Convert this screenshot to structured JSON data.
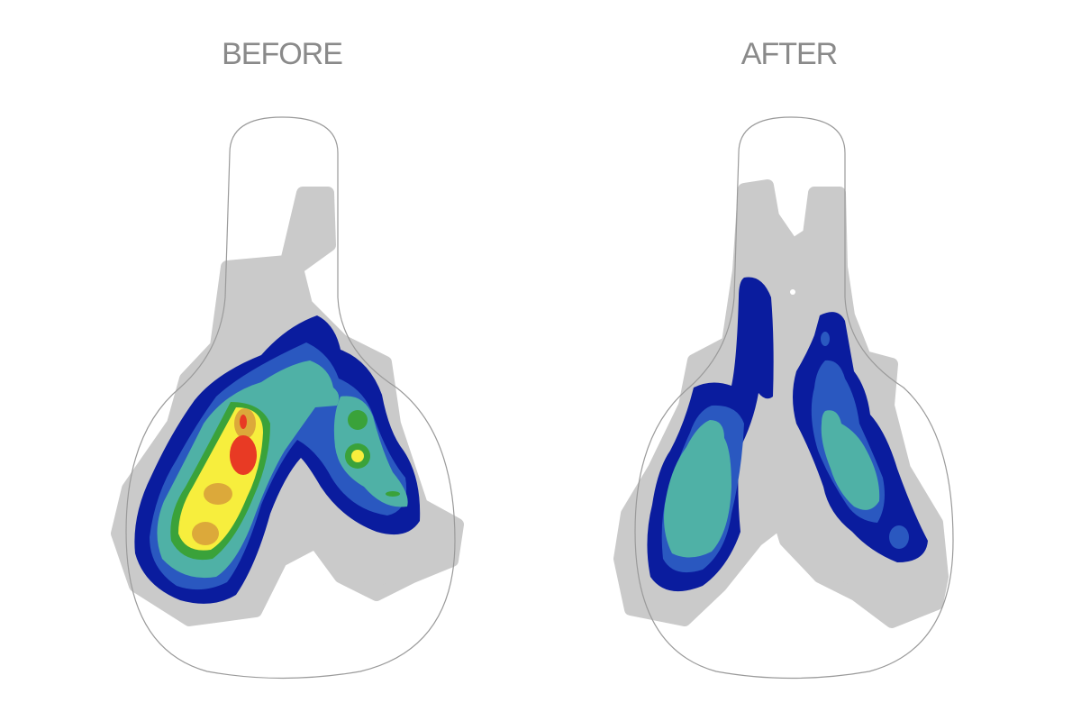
{
  "panels": [
    {
      "label": "BEFORE"
    },
    {
      "label": "AFTER"
    }
  ]
}
